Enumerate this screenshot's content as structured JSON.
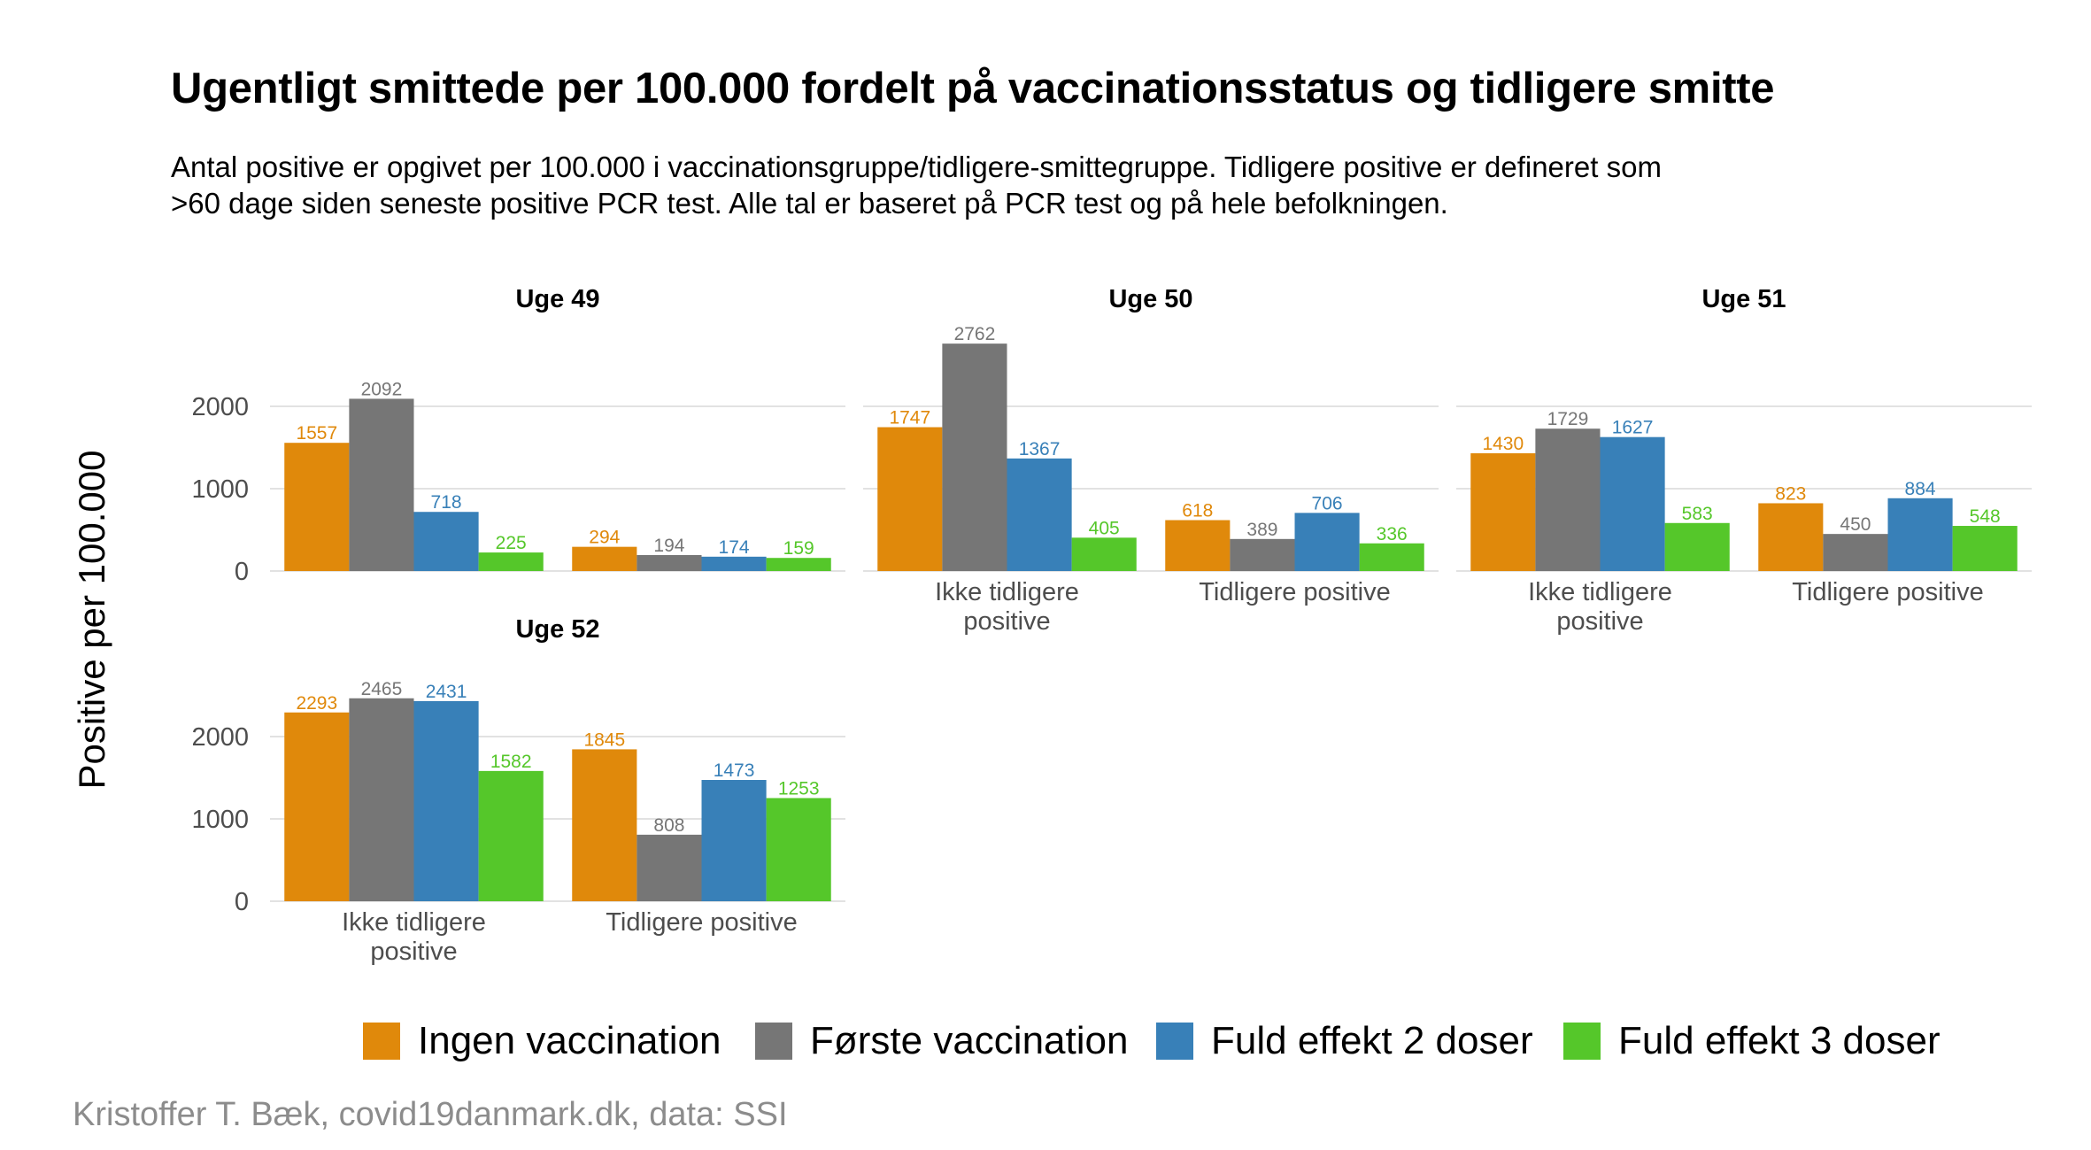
{
  "title": "Ugentligt smittede per 100.000 fordelt på vaccinationsstatus og tidligere smitte",
  "subtitle_lines": [
    "Antal positive er opgivet per 100.000 i vaccinationsgruppe/tidligere-smittegruppe. Tidligere positive er defineret som",
    ">60 dage siden seneste positive PCR test. Alle tal er baseret på PCR test og på hele befolkningen."
  ],
  "caption": "Kristoffer T. Bæk, covid19danmark.dk, data: SSI",
  "colors": {
    "Ingen vaccination": "#E0890B",
    "Første vaccination": "#767676",
    "Fuld effekt 2 doser": "#3880B8",
    "Fuld effekt 3 doser": "#55C72A",
    "grid": "#e2e2e2",
    "axis_text": "#4d4d4d"
  },
  "chart_data": {
    "type": "bar",
    "ylabel": "Positive per 100.000",
    "xlabel": "",
    "ylim": [
      0,
      2900
    ],
    "yticks": [
      0,
      1000,
      2000
    ],
    "grid": true,
    "legend_position": "bottom",
    "categories": [
      "Ikke tidligere positive",
      "Tidligere positive"
    ],
    "category_labels": [
      [
        "Ikke tidligere",
        "positive"
      ],
      [
        "Tidligere positive"
      ]
    ],
    "series_names": [
      "Ingen vaccination",
      "Første vaccination",
      "Fuld effekt 2 doser",
      "Fuld effekt 3 doser"
    ],
    "panels": [
      {
        "name": "Uge 49",
        "show_x_labels": false,
        "series": [
          {
            "name": "Ingen vaccination",
            "values": [
              1557,
              294
            ]
          },
          {
            "name": "Første vaccination",
            "values": [
              2092,
              194
            ]
          },
          {
            "name": "Fuld effekt 2 doser",
            "values": [
              718,
              174
            ]
          },
          {
            "name": "Fuld effekt 3 doser",
            "values": [
              225,
              159
            ]
          }
        ]
      },
      {
        "name": "Uge 50",
        "show_x_labels": true,
        "series": [
          {
            "name": "Ingen vaccination",
            "values": [
              1747,
              618
            ]
          },
          {
            "name": "Første vaccination",
            "values": [
              2762,
              389
            ]
          },
          {
            "name": "Fuld effekt 2 doser",
            "values": [
              1367,
              706
            ]
          },
          {
            "name": "Fuld effekt 3 doser",
            "values": [
              405,
              336
            ]
          }
        ]
      },
      {
        "name": "Uge 51",
        "show_x_labels": true,
        "series": [
          {
            "name": "Ingen vaccination",
            "values": [
              1430,
              823
            ]
          },
          {
            "name": "Første vaccination",
            "values": [
              1729,
              450
            ]
          },
          {
            "name": "Fuld effekt 2 doser",
            "values": [
              1627,
              884
            ]
          },
          {
            "name": "Fuld effekt 3 doser",
            "values": [
              583,
              548
            ]
          }
        ]
      },
      {
        "name": "Uge 52",
        "show_x_labels": true,
        "series": [
          {
            "name": "Ingen vaccination",
            "values": [
              2293,
              1845
            ]
          },
          {
            "name": "Første vaccination",
            "values": [
              2465,
              808
            ]
          },
          {
            "name": "Fuld effekt 2 doser",
            "values": [
              2431,
              1473
            ]
          },
          {
            "name": "Fuld effekt 3 doser",
            "values": [
              1582,
              1253
            ]
          }
        ]
      }
    ]
  }
}
